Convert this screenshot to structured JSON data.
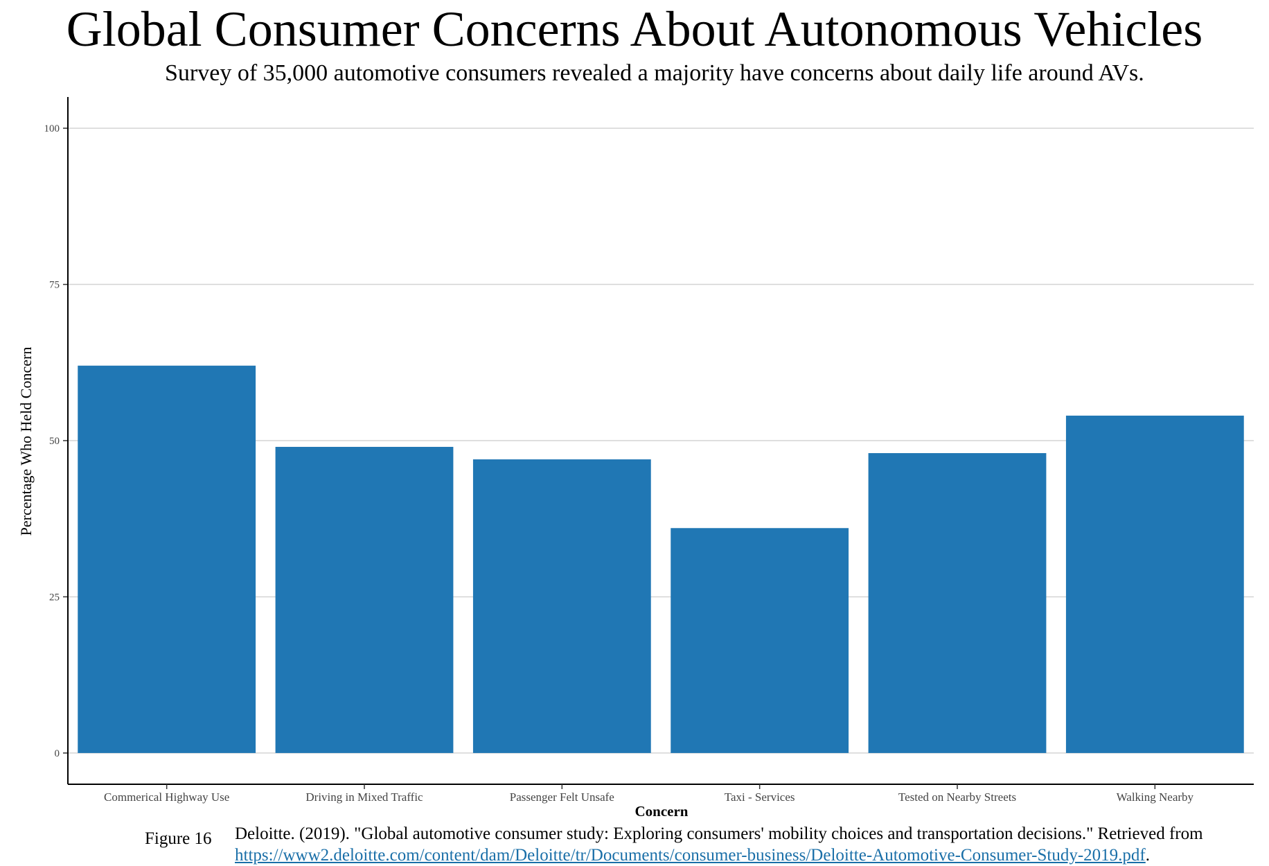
{
  "chart_data": {
    "type": "bar",
    "title": "Global Consumer Concerns About Autonomous Vehicles",
    "subtitle": "Survey of 35,000 automotive consumers revealed a majority have concerns about daily life around AVs.",
    "xlabel": "Concern",
    "ylabel": "Percentage Who Held Concern",
    "categories": [
      "Commerical Highway Use",
      "Driving in Mixed Traffic",
      "Passenger Felt Unsafe",
      "Taxi - Services",
      "Tested on Nearby Streets",
      "Walking Nearby"
    ],
    "values": [
      62,
      49,
      47,
      36,
      48,
      54
    ],
    "ylim": [
      -5,
      105
    ],
    "yticks": [
      0,
      25,
      50,
      75,
      100
    ],
    "grid": "horizontal",
    "bar_color": "#2077b4",
    "grid_color": "#d4d4d4"
  },
  "caption": {
    "figure_label": "Figure 16",
    "citation_text": "Deloitte. (2019). \"Global automotive consumer study: Exploring consumers' mobility choices and transportation decisions.\" Retrieved from",
    "citation_url": "https://www2.deloitte.com/content/dam/Deloitte/tr/Documents/consumer-business/Deloitte-Automotive-Consumer-Study-2019.pdf",
    "citation_end": "."
  }
}
